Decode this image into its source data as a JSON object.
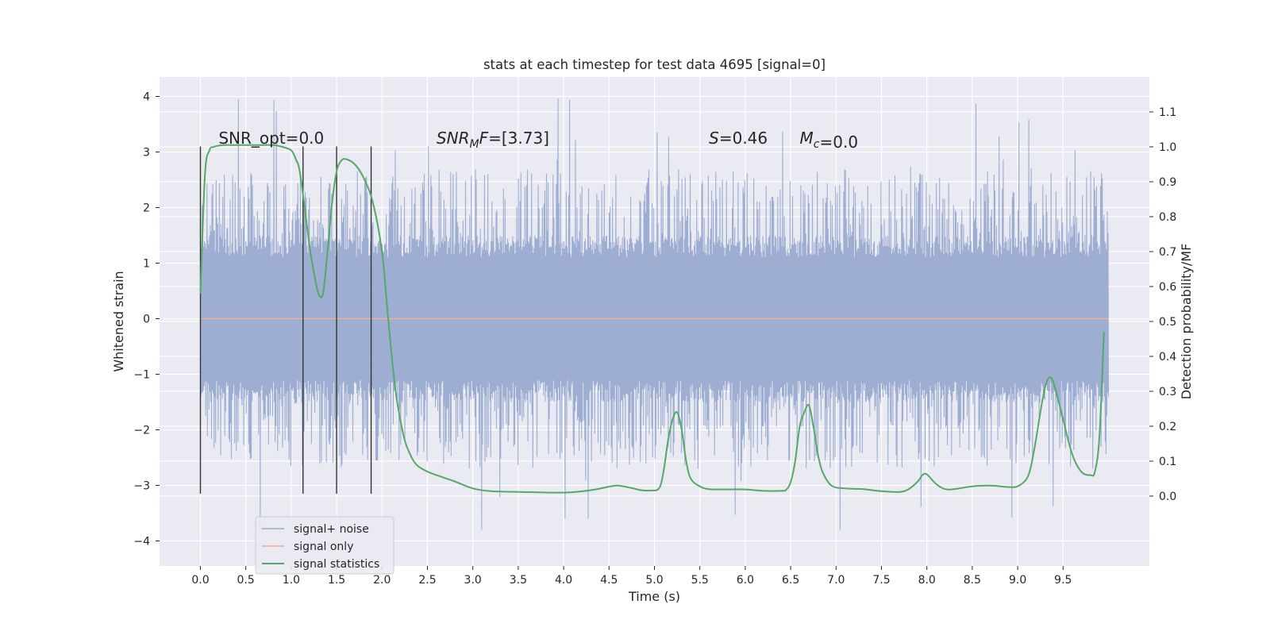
{
  "chart_data": {
    "type": "line",
    "title": "stats at each timestep for test data 4695 [signal=0]",
    "xlabel": "Time (s)",
    "ylabel": "Whitened strain",
    "y2label": "Detection probability/MF",
    "xlim": [
      -0.45,
      10.45
    ],
    "ylim": [
      -4.45,
      4.35
    ],
    "y2lim": [
      -0.2,
      1.2
    ],
    "x_ticks": [
      0.0,
      0.5,
      1.0,
      1.5,
      2.0,
      2.5,
      3.0,
      3.5,
      4.0,
      4.5,
      5.0,
      5.5,
      6.0,
      6.5,
      7.0,
      7.5,
      8.0,
      8.5,
      9.0,
      9.5
    ],
    "x_tick_labels": [
      "0.0",
      "0.5",
      "1.0",
      "1.5",
      "2.0",
      "2.5",
      "3.0",
      "3.5",
      "4.0",
      "4.5",
      "5.0",
      "5.5",
      "6.0",
      "6.5",
      "7.0",
      "7.5",
      "8.0",
      "8.5",
      "9.0",
      "9.5"
    ],
    "y_ticks": [
      4,
      3,
      2,
      1,
      0,
      -1,
      -2,
      -3,
      -4
    ],
    "y_tick_labels": [
      "4",
      "3",
      "2",
      "1",
      "0",
      "−1",
      "−2",
      "−3",
      "−4"
    ],
    "y2_ticks": [
      1.1,
      1.0,
      0.9,
      0.8,
      0.7,
      0.6,
      0.5,
      0.4,
      0.3,
      0.2,
      0.1,
      0.0
    ],
    "y2_tick_labels": [
      "1.1",
      "1.0",
      "0.9",
      "0.8",
      "0.7",
      "0.6",
      "0.5",
      "0.4",
      "0.3",
      "0.2",
      "0.1",
      "0.0"
    ],
    "grid": true,
    "legend_position": "lower-left",
    "colors": {
      "background": "#eaeaf2",
      "grid": "#ffffff",
      "noise": "#9aabd0",
      "signal": "#eeae96",
      "stats": "#55a868",
      "vlines": "#333333"
    },
    "series": [
      {
        "name": "signal+ noise",
        "axis": "left",
        "style": "dense-oscillating",
        "x_range": [
          0.0,
          10.0
        ],
        "core_range": [
          -1.3,
          1.3
        ],
        "typical_peak_range": [
          -2.7,
          2.7
        ],
        "max": 4.0,
        "min": -3.8
      },
      {
        "name": "signal only",
        "axis": "left",
        "x": [
          0.0,
          10.0
        ],
        "y": [
          0.0,
          0.0
        ]
      },
      {
        "name": "signal statistics",
        "axis": "right",
        "x": [
          0.0,
          0.05,
          0.1,
          0.15,
          0.25,
          0.4,
          0.6,
          0.8,
          0.9,
          1.0,
          1.05,
          1.1,
          1.2,
          1.25,
          1.3,
          1.35,
          1.4,
          1.45,
          1.5,
          1.55,
          1.6,
          1.7,
          1.8,
          1.9,
          2.0,
          2.05,
          2.1,
          2.15,
          2.2,
          2.25,
          2.3,
          2.35,
          2.4,
          2.5,
          2.6,
          2.8,
          3.0,
          3.2,
          3.5,
          4.0,
          4.3,
          4.5,
          4.6,
          4.75,
          4.85,
          4.95,
          5.05,
          5.1,
          5.15,
          5.2,
          5.25,
          5.3,
          5.35,
          5.4,
          5.5,
          5.6,
          5.8,
          6.0,
          6.2,
          6.4,
          6.45,
          6.5,
          6.55,
          6.6,
          6.65,
          6.7,
          6.75,
          6.8,
          6.85,
          6.95,
          7.1,
          7.3,
          7.5,
          7.7,
          7.8,
          7.9,
          7.95,
          8.0,
          8.1,
          8.2,
          8.3,
          8.5,
          8.7,
          8.9,
          9.0,
          9.1,
          9.15,
          9.2,
          9.25,
          9.3,
          9.35,
          9.4,
          9.5,
          9.6,
          9.7,
          9.8,
          9.85,
          9.9,
          9.95
        ],
        "y": [
          0.58,
          0.92,
          0.99,
          1.0,
          1.005,
          1.005,
          1.005,
          1.005,
          1.0,
          0.99,
          0.965,
          0.92,
          0.72,
          0.64,
          0.58,
          0.58,
          0.7,
          0.84,
          0.93,
          0.96,
          0.965,
          0.95,
          0.91,
          0.84,
          0.7,
          0.56,
          0.42,
          0.3,
          0.22,
          0.16,
          0.125,
          0.1,
          0.085,
          0.07,
          0.06,
          0.042,
          0.022,
          0.014,
          0.012,
          0.01,
          0.017,
          0.027,
          0.03,
          0.023,
          0.017,
          0.016,
          0.022,
          0.07,
          0.16,
          0.22,
          0.24,
          0.19,
          0.1,
          0.05,
          0.028,
          0.02,
          0.019,
          0.019,
          0.015,
          0.015,
          0.018,
          0.04,
          0.1,
          0.2,
          0.24,
          0.26,
          0.2,
          0.12,
          0.07,
          0.03,
          0.022,
          0.02,
          0.014,
          0.012,
          0.02,
          0.042,
          0.06,
          0.062,
          0.035,
          0.02,
          0.02,
          0.028,
          0.03,
          0.026,
          0.028,
          0.05,
          0.09,
          0.16,
          0.24,
          0.31,
          0.34,
          0.32,
          0.22,
          0.12,
          0.07,
          0.06,
          0.07,
          0.17,
          0.47
        ]
      }
    ],
    "vlines": {
      "x": [
        0.0,
        1.13,
        1.5,
        1.88
      ],
      "ymin": -3.15,
      "ymax": 3.1
    },
    "annotations": [
      {
        "text": "SNR_opt=0.0",
        "x": 0.2,
        "y": 3.15
      },
      {
        "text": "SNR_MF=[3.73]",
        "x": 2.6,
        "y": 3.15,
        "math": true
      },
      {
        "text": "S=0.46",
        "x": 5.6,
        "y": 3.15,
        "math": true
      },
      {
        "text": "M_c=0.0",
        "x": 6.6,
        "y": 3.15,
        "math": true
      }
    ]
  }
}
